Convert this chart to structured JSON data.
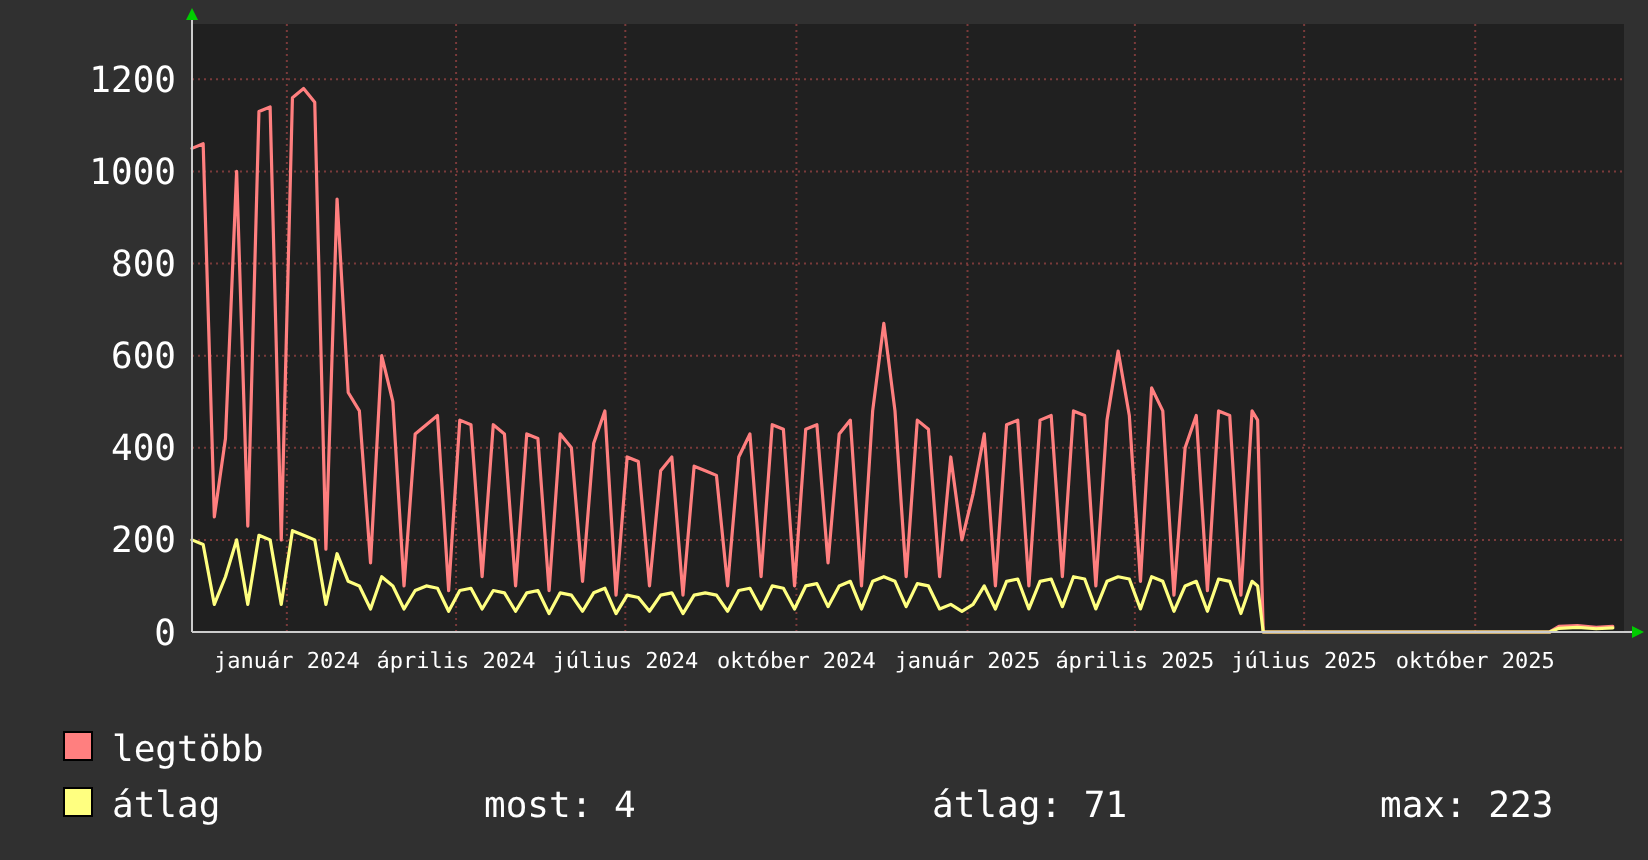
{
  "chart_data": {
    "type": "line",
    "x": [
      "2023-11-11",
      "2023-11-17",
      "2023-11-23",
      "2023-11-29",
      "2023-12-05",
      "2023-12-11",
      "2023-12-17",
      "2023-12-23",
      "2023-12-29",
      "2024-01-04",
      "2024-01-10",
      "2024-01-16",
      "2024-01-22",
      "2024-01-28",
      "2024-02-03",
      "2024-02-09",
      "2024-02-15",
      "2024-02-21",
      "2024-02-27",
      "2024-03-04",
      "2024-03-10",
      "2024-03-16",
      "2024-03-22",
      "2024-03-28",
      "2024-04-03",
      "2024-04-09",
      "2024-04-15",
      "2024-04-21",
      "2024-04-27",
      "2024-05-03",
      "2024-05-09",
      "2024-05-15",
      "2024-05-21",
      "2024-05-27",
      "2024-06-02",
      "2024-06-08",
      "2024-06-14",
      "2024-06-20",
      "2024-06-26",
      "2024-07-02",
      "2024-07-08",
      "2024-07-14",
      "2024-07-20",
      "2024-07-26",
      "2024-08-01",
      "2024-08-07",
      "2024-08-13",
      "2024-08-19",
      "2024-08-25",
      "2024-08-31",
      "2024-09-06",
      "2024-09-12",
      "2024-09-18",
      "2024-09-24",
      "2024-09-30",
      "2024-10-06",
      "2024-10-12",
      "2024-10-18",
      "2024-10-24",
      "2024-10-30",
      "2024-11-05",
      "2024-11-11",
      "2024-11-17",
      "2024-11-23",
      "2024-11-29",
      "2024-12-05",
      "2024-12-11",
      "2024-12-17",
      "2024-12-23",
      "2024-12-29",
      "2025-01-04",
      "2025-01-10",
      "2025-01-16",
      "2025-01-22",
      "2025-01-28",
      "2025-02-03",
      "2025-02-09",
      "2025-02-15",
      "2025-02-21",
      "2025-02-27",
      "2025-03-05",
      "2025-03-11",
      "2025-03-17",
      "2025-03-23",
      "2025-03-29",
      "2025-04-04",
      "2025-04-10",
      "2025-04-16",
      "2025-04-22",
      "2025-04-28",
      "2025-05-04",
      "2025-05-10",
      "2025-05-16",
      "2025-05-22",
      "2025-05-28",
      "2025-06-03",
      "2025-06-06",
      "2025-06-09",
      "2025-07-15",
      "2025-08-20",
      "2025-09-25",
      "2025-11-10",
      "2025-11-15",
      "2025-11-25",
      "2025-12-05",
      "2025-12-14"
    ],
    "series": [
      {
        "name": "legtöbb",
        "color": "#ff7f7f",
        "values": [
          1050,
          1060,
          250,
          420,
          1000,
          230,
          1130,
          1140,
          200,
          1160,
          1180,
          1150,
          180,
          940,
          520,
          480,
          150,
          600,
          500,
          100,
          430,
          450,
          470,
          90,
          460,
          450,
          120,
          450,
          430,
          100,
          430,
          420,
          90,
          430,
          400,
          110,
          410,
          480,
          80,
          380,
          370,
          100,
          350,
          380,
          80,
          360,
          350,
          340,
          100,
          380,
          430,
          120,
          450,
          440,
          100,
          440,
          450,
          150,
          430,
          460,
          100,
          480,
          670,
          480,
          120,
          460,
          440,
          120,
          380,
          200,
          300,
          430,
          100,
          450,
          460,
          100,
          460,
          470,
          120,
          480,
          470,
          100,
          460,
          610,
          470,
          110,
          530,
          480,
          80,
          400,
          470,
          90,
          480,
          470,
          80,
          480,
          460,
          0,
          0,
          0,
          0,
          0,
          12,
          14,
          10,
          12
        ]
      },
      {
        "name": "átlag",
        "color": "#ffff80",
        "values": [
          200,
          190,
          60,
          120,
          200,
          60,
          210,
          200,
          60,
          220,
          210,
          200,
          60,
          170,
          110,
          100,
          50,
          120,
          100,
          50,
          90,
          100,
          95,
          45,
          90,
          95,
          50,
          90,
          85,
          45,
          85,
          90,
          40,
          85,
          80,
          45,
          85,
          95,
          40,
          80,
          75,
          45,
          80,
          85,
          40,
          80,
          85,
          80,
          45,
          90,
          95,
          50,
          100,
          95,
          50,
          100,
          105,
          55,
          100,
          110,
          50,
          110,
          120,
          110,
          55,
          105,
          100,
          50,
          60,
          45,
          60,
          100,
          50,
          110,
          115,
          50,
          110,
          115,
          55,
          120,
          115,
          50,
          110,
          120,
          115,
          50,
          120,
          110,
          45,
          100,
          110,
          45,
          115,
          110,
          40,
          110,
          100,
          0,
          0,
          0,
          0,
          0,
          8,
          10,
          7,
          9
        ]
      }
    ],
    "xlim": [
      "2023-11-11",
      "2025-12-20"
    ],
    "xticks": [
      {
        "value": "2024-01-01",
        "label": "január 2024"
      },
      {
        "value": "2024-04-01",
        "label": "április 2024"
      },
      {
        "value": "2024-07-01",
        "label": "július 2024"
      },
      {
        "value": "2024-10-01",
        "label": "október 2024"
      },
      {
        "value": "2025-01-01",
        "label": "január 2025"
      },
      {
        "value": "2025-04-01",
        "label": "április 2025"
      },
      {
        "value": "2025-07-01",
        "label": "július 2025"
      },
      {
        "value": "2025-10-01",
        "label": "október 2025"
      }
    ],
    "ylim": [
      0,
      1320
    ],
    "yticks": [
      0,
      200,
      400,
      600,
      800,
      1000,
      1200
    ],
    "grid": true,
    "legend": "bottom",
    "line_style": "solid",
    "annotations": [
      "most: 4",
      "átlag: 71",
      "max: 223"
    ]
  }
}
